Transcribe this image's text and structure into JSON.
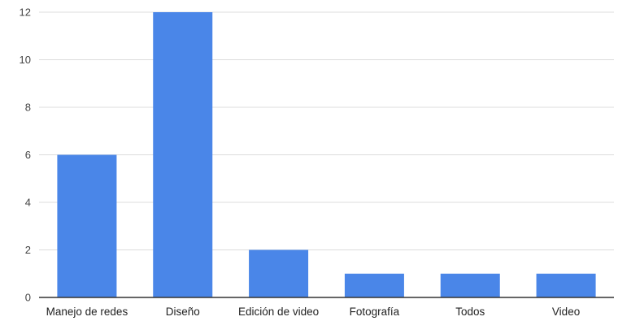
{
  "chart_data": {
    "type": "bar",
    "title": "",
    "xlabel": "",
    "ylabel": "",
    "categories": [
      "Manejo de redes",
      "Diseño",
      "Edición de video",
      "Fotografía",
      "Todos",
      "Video"
    ],
    "values": [
      6,
      12,
      2,
      1,
      1,
      1
    ],
    "ylim": [
      0,
      12
    ],
    "yticks": [
      0,
      2,
      4,
      6,
      8,
      10,
      12
    ],
    "grid": true,
    "legend": "none",
    "bar_color": "#4a86e8",
    "gridline_color": "#dcdcdc"
  }
}
